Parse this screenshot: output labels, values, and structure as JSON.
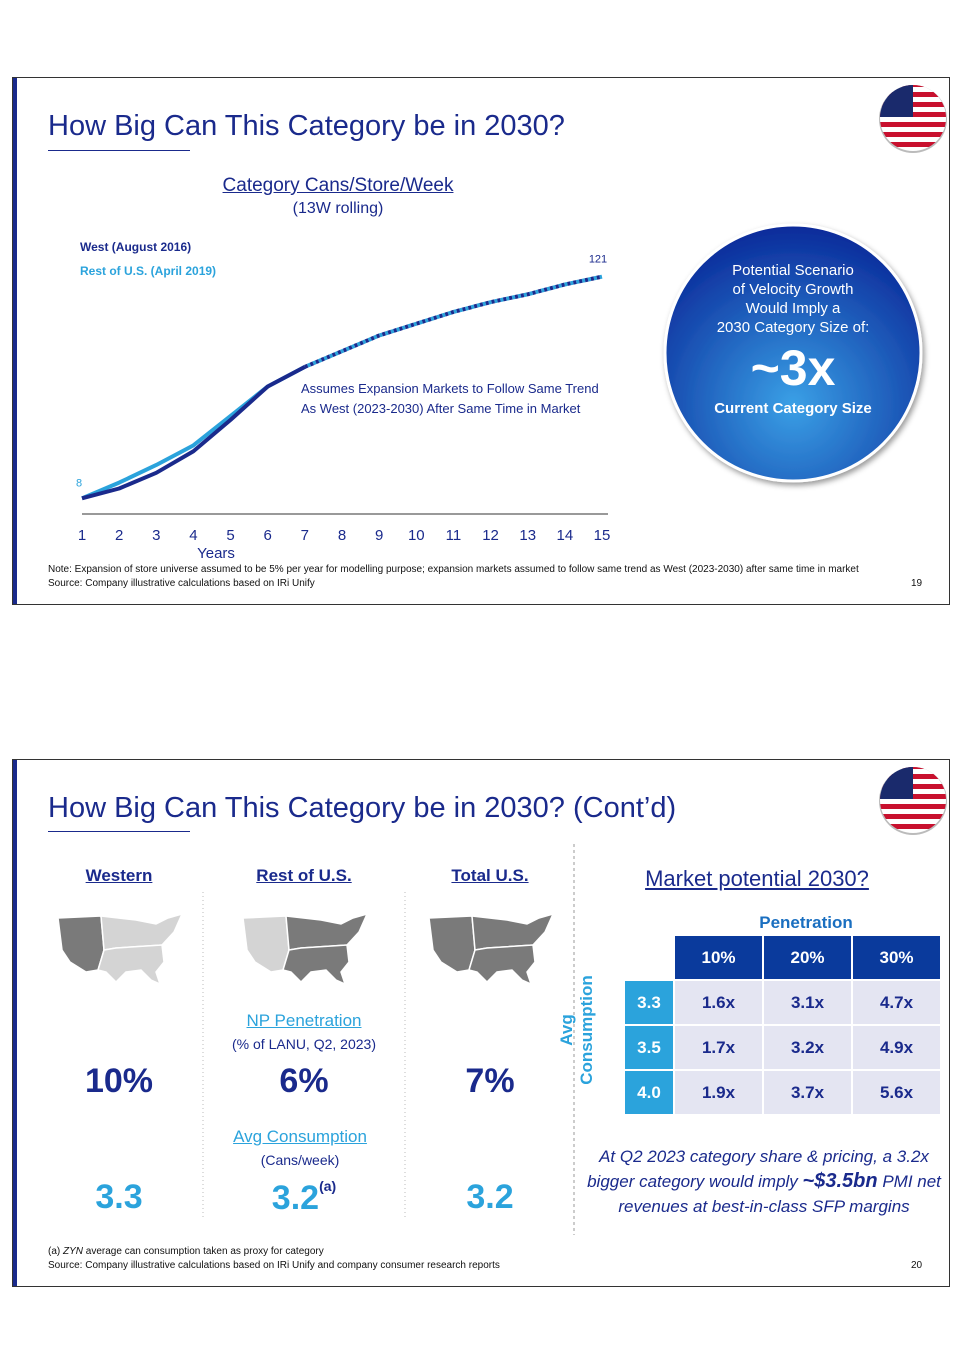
{
  "slides": [
    {
      "title": "How Big Can This Category be in 2030?",
      "chart_data": {
        "type": "line",
        "title": "Category Cans/Store/Week",
        "subtitle": "(13W rolling)",
        "x_label": "Years",
        "x": [
          1,
          2,
          3,
          4,
          5,
          6,
          7,
          8,
          9,
          10,
          11,
          12,
          13,
          14,
          15
        ],
        "xlim": [
          1,
          15
        ],
        "xticks": [
          1,
          2,
          3,
          4,
          5,
          6,
          7,
          8,
          9,
          10,
          11,
          12,
          13,
          14,
          15
        ],
        "ylim": [
          0,
          130
        ],
        "series": [
          {
            "name": "West (August 2016)",
            "color": "#1a2a8c",
            "values": [
              8,
              13,
              21,
              32,
              48,
              65,
              75,
              83,
              91,
              97,
              103,
              108,
              112,
              117,
              121
            ]
          },
          {
            "name": "Rest of U.S. (April 2019)",
            "color": "#2ba3dc",
            "values": [
              8,
              16,
              25,
              35,
              50,
              65,
              75,
              83,
              91,
              97,
              103,
              108,
              112,
              117,
              121
            ]
          }
        ],
        "annotation": [
          "Assumes Expansion Markets to Follow Same Trend",
          "As West (2023-2030) After Same Time in Market"
        ]
      },
      "callout": {
        "lines": [
          "Potential Scenario",
          "of Velocity Growth",
          "Would Imply a",
          "2030 Category Size of:"
        ],
        "big": "~3x",
        "caption": "Current Category Size"
      },
      "note": "Note: Expansion of store universe assumed to be 5% per year for modelling purpose; expansion markets assumed to follow same trend as West (2023-2030) after same time in market",
      "source": "Source: Company illustrative calculations based on IRi Unify",
      "page": "19"
    },
    {
      "title": "How Big Can This Category be in 2030? (Cont’d)",
      "regions": [
        {
          "name": "Western",
          "penetration": "10%",
          "consumption": "3.3"
        },
        {
          "name": "Rest of U.S.",
          "penetration": "6%",
          "consumption": "3.2",
          "consumption_note": "(a)"
        },
        {
          "name": "Total U.S.",
          "penetration": "7%",
          "consumption": "3.2"
        }
      ],
      "penetration_label": "NP Penetration",
      "penetration_sub": "(% of LANU, Q2, 2023)",
      "consumption_label": "Avg Consumption",
      "consumption_sub": "(Cans/week)",
      "market": {
        "title": "Market potential 2030?",
        "col_header": "Penetration",
        "row_header_lines": [
          "Avg",
          "Consumption"
        ],
        "columns": [
          "10%",
          "20%",
          "30%"
        ],
        "rows": [
          {
            "label": "3.3",
            "cells": [
              "1.6x",
              "3.1x",
              "4.7x"
            ]
          },
          {
            "label": "3.5",
            "cells": [
              "1.7x",
              "3.2x",
              "4.9x"
            ]
          },
          {
            "label": "4.0",
            "cells": [
              "1.9x",
              "3.7x",
              "5.6x"
            ]
          }
        ]
      },
      "conclusion": {
        "before": "At Q2 2023 category share & pricing, a 3.2x bigger category would imply ",
        "bold": "~$3.5bn",
        "after": " PMI net revenues at best-in-class SFP margins"
      },
      "footnote": {
        "marker": "(a)",
        "brand": "ZYN",
        "text": "average can consumption taken as proxy for category"
      },
      "source": "Source: Company illustrative calculations based on IRi Unify and company consumer research reports",
      "page": "20"
    }
  ]
}
